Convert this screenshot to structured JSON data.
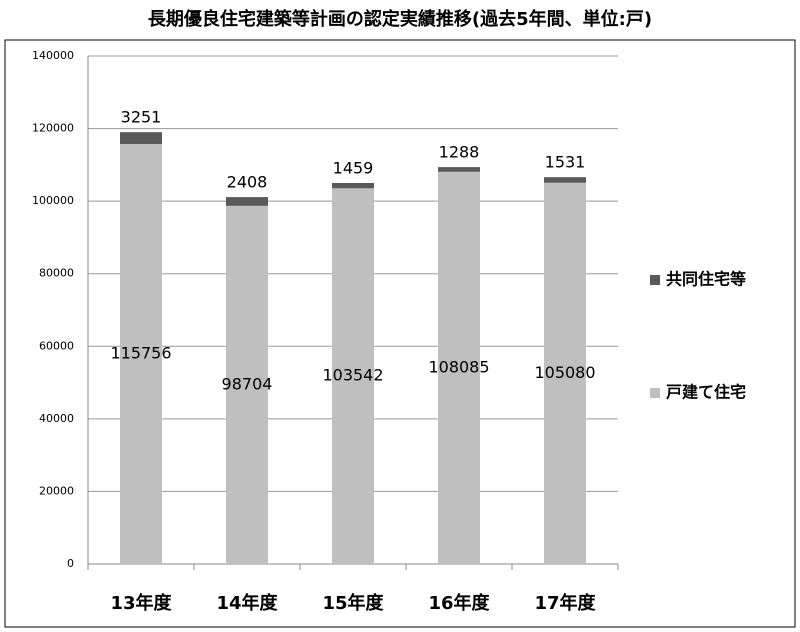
{
  "chart_data": {
    "type": "stacked-bar",
    "title": "長期優良住宅建築等計画の認定実績推移(過去5年間、単位:戸)",
    "categories": [
      "13年度",
      "14年度",
      "15年度",
      "16年度",
      "17年度"
    ],
    "series": [
      {
        "name": "戸建て住宅",
        "color": "#bfbfbf",
        "values": [
          115756,
          98704,
          103542,
          108085,
          105080
        ]
      },
      {
        "name": "共同住宅等",
        "color": "#595959",
        "values": [
          3251,
          2408,
          1459,
          1288,
          1531
        ]
      }
    ],
    "ylim": [
      0,
      140000
    ],
    "yticks": [
      0,
      20000,
      40000,
      60000,
      80000,
      100000,
      120000,
      140000
    ],
    "grid": true,
    "legend": "right"
  }
}
